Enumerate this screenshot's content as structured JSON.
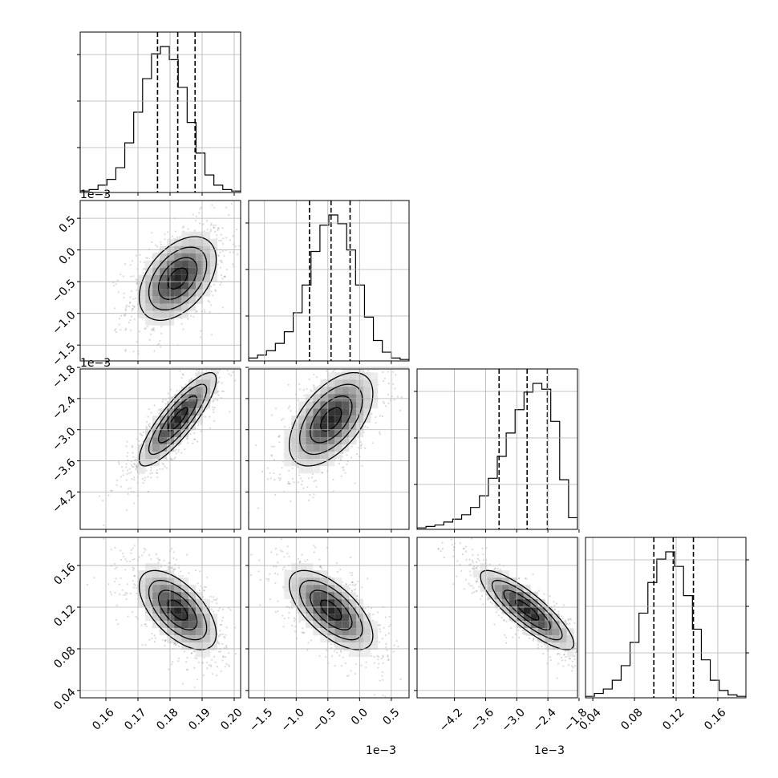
{
  "chart_data": {
    "type": "scatter",
    "grid": true,
    "parameters": [
      {
        "range": [
          0.152,
          0.202
        ],
        "ticks": [
          0.16,
          0.17,
          0.18,
          0.19,
          0.2
        ],
        "tick_labels": [
          "0.16",
          "0.17",
          "0.18",
          "0.19",
          "0.20"
        ],
        "offset": "",
        "median": 0.1824,
        "q16": 0.1761,
        "q84": 0.1878,
        "std": 0.006
      },
      {
        "range": [
          -1.75,
          0.78
        ],
        "ticks": [
          -1.5,
          -1.0,
          -0.5,
          0.0,
          0.5
        ],
        "tick_labels": [
          "−1.5",
          "−1.0",
          "−0.5",
          "0.0",
          "0.5"
        ],
        "offset": "1e−3",
        "median": -0.45,
        "q16": -0.79,
        "q84": -0.15,
        "std": 0.33
      },
      {
        "range": [
          -4.92,
          -1.83
        ],
        "ticks": [
          -4.2,
          -3.6,
          -3.0,
          -2.4,
          -1.8
        ],
        "tick_labels": [
          "−4.2",
          "−3.6",
          "−3.0",
          "−2.4",
          "−1.8"
        ],
        "offset": "1e−3",
        "median": -2.8,
        "q16": -3.34,
        "q84": -2.41,
        "std": 0.45
      },
      {
        "range": [
          0.033,
          0.187
        ],
        "ticks": [
          0.04,
          0.08,
          0.12,
          0.16
        ],
        "tick_labels": [
          "0.04",
          "0.08",
          "0.12",
          "0.16"
        ],
        "offset": "",
        "median": 0.1172,
        "q16": 0.0986,
        "q84": 0.1366,
        "std": 0.019
      }
    ],
    "histograms": [
      [
        0.01,
        0.02,
        0.05,
        0.09,
        0.17,
        0.34,
        0.55,
        0.78,
        0.95,
        1.0,
        0.91,
        0.72,
        0.48,
        0.27,
        0.12,
        0.05,
        0.02,
        0.01
      ],
      [
        0.02,
        0.04,
        0.07,
        0.12,
        0.2,
        0.33,
        0.52,
        0.75,
        0.93,
        1.0,
        0.94,
        0.76,
        0.52,
        0.3,
        0.14,
        0.06,
        0.02,
        0.01
      ],
      [
        0.01,
        0.02,
        0.03,
        0.05,
        0.07,
        0.1,
        0.15,
        0.23,
        0.35,
        0.5,
        0.66,
        0.82,
        0.94,
        1.0,
        0.96,
        0.74,
        0.34,
        0.08
      ],
      [
        0.01,
        0.03,
        0.06,
        0.12,
        0.22,
        0.38,
        0.58,
        0.79,
        0.95,
        1.0,
        0.9,
        0.7,
        0.47,
        0.26,
        0.12,
        0.05,
        0.02,
        0.01
      ]
    ],
    "correlations": [
      [
        1,
        0,
        0,
        0
      ],
      [
        0.45,
        1,
        0,
        0
      ],
      [
        0.85,
        0.55,
        1,
        0
      ],
      [
        -0.6,
        -0.65,
        -0.85,
        1
      ]
    ]
  }
}
